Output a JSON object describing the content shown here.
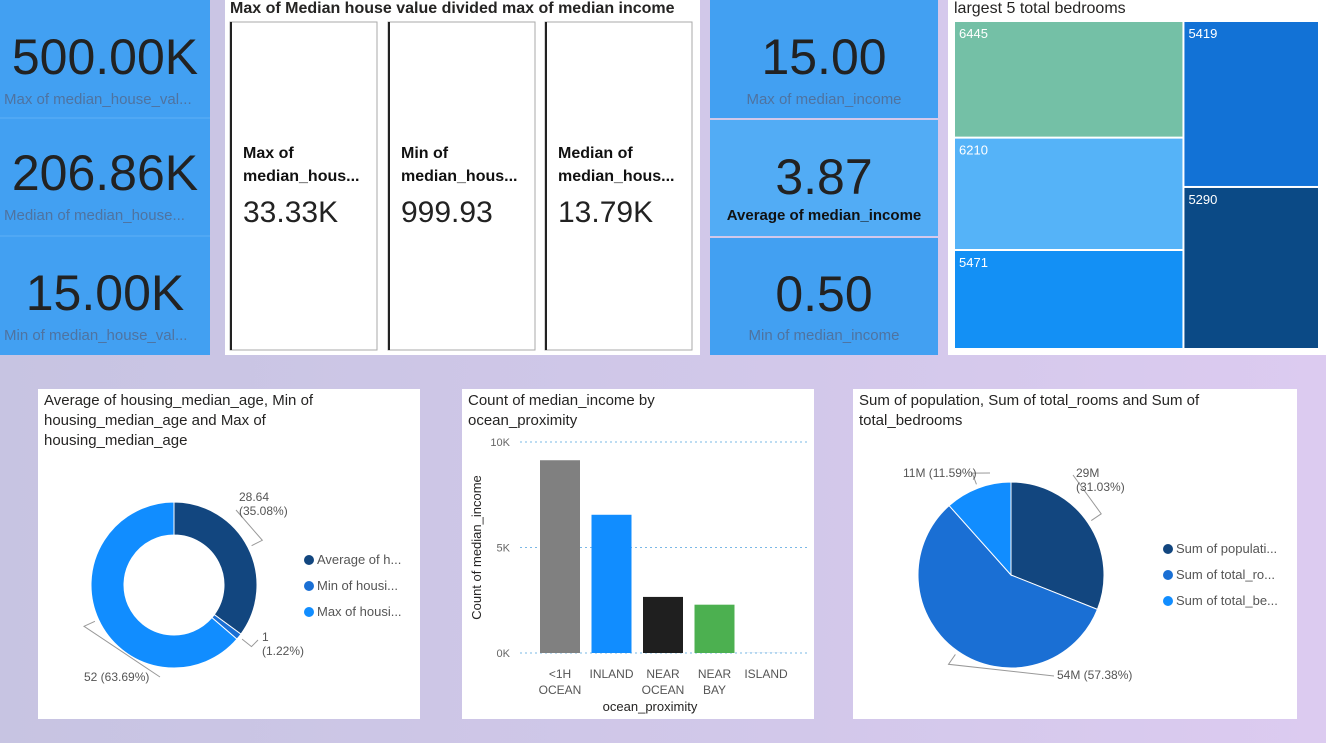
{
  "value_cards": [
    {
      "value": "500.00K",
      "label": "Max of median_house_val..."
    },
    {
      "value": "206.86K",
      "label": "Median of median_house..."
    },
    {
      "value": "15.00K",
      "label": "Min of median_house_val..."
    }
  ],
  "multi_row_card": {
    "title": "Max of Median house value divided max of median income",
    "items": [
      {
        "label": "Max of median_hous...",
        "value": "33.33K"
      },
      {
        "label": "Min of median_hous...",
        "value": "999.93"
      },
      {
        "label": "Median of median_hous...",
        "value": "13.79K"
      }
    ]
  },
  "income_cards": [
    {
      "value": "15.00",
      "label": "Max of median_income"
    },
    {
      "value": "3.87",
      "label": "Average of median_income"
    },
    {
      "value": "0.50",
      "label": "Min of median_income"
    }
  ],
  "chart_data": [
    {
      "type": "treemap",
      "title": "largest 5 total bedrooms",
      "values": [
        6445,
        5419,
        6210,
        5290,
        5471
      ],
      "colors": [
        "#74c0a6",
        "#1272d6",
        "#55b3f8",
        "#0b4a86",
        "#1390f5"
      ]
    },
    {
      "type": "donut",
      "title": "Average of housing_median_age, Min of housing_median_age and Max of housing_median_age",
      "categories": [
        "Average of h...",
        "Min of housi...",
        "Max of housi..."
      ],
      "values": [
        28.64,
        1,
        52
      ],
      "value_labels": [
        "28.64 (35.08%)",
        "1 (1.22%)",
        "52 (63.69%)"
      ],
      "colors": [
        "#12467f",
        "#1a6fd4",
        "#118dff"
      ]
    },
    {
      "type": "bar",
      "title": "Count of median_income by ocean_proximity",
      "categories": [
        "<1H OCEAN",
        "INLAND",
        "NEAR OCEAN",
        "NEAR BAY",
        "ISLAND"
      ],
      "values": [
        9136,
        6551,
        2658,
        2290,
        5
      ],
      "colors": [
        "#808080",
        "#118dff",
        "#1f1f1f",
        "#4cb050",
        "#2d7fc8"
      ],
      "x_label": "ocean_proximity",
      "y_label": "Count of median_income",
      "ylim": [
        0,
        10000
      ],
      "yticks": [
        {
          "value": 0,
          "label": "0K"
        },
        {
          "value": 5000,
          "label": "5K"
        },
        {
          "value": 10000,
          "label": "10K"
        }
      ],
      "grid": true
    },
    {
      "type": "pie",
      "title": "Sum of population, Sum of total_rooms and Sum of total_bedrooms",
      "categories": [
        "Sum of populati...",
        "Sum of total_ro...",
        "Sum of total_be..."
      ],
      "values": [
        29.42,
        54.4,
        10.99
      ],
      "value_labels": [
        "29M (31.03%)",
        "54M (57.38%)",
        "11M (11.59%)"
      ],
      "colors": [
        "#12467f",
        "#1a6fd4",
        "#118dff"
      ]
    }
  ]
}
